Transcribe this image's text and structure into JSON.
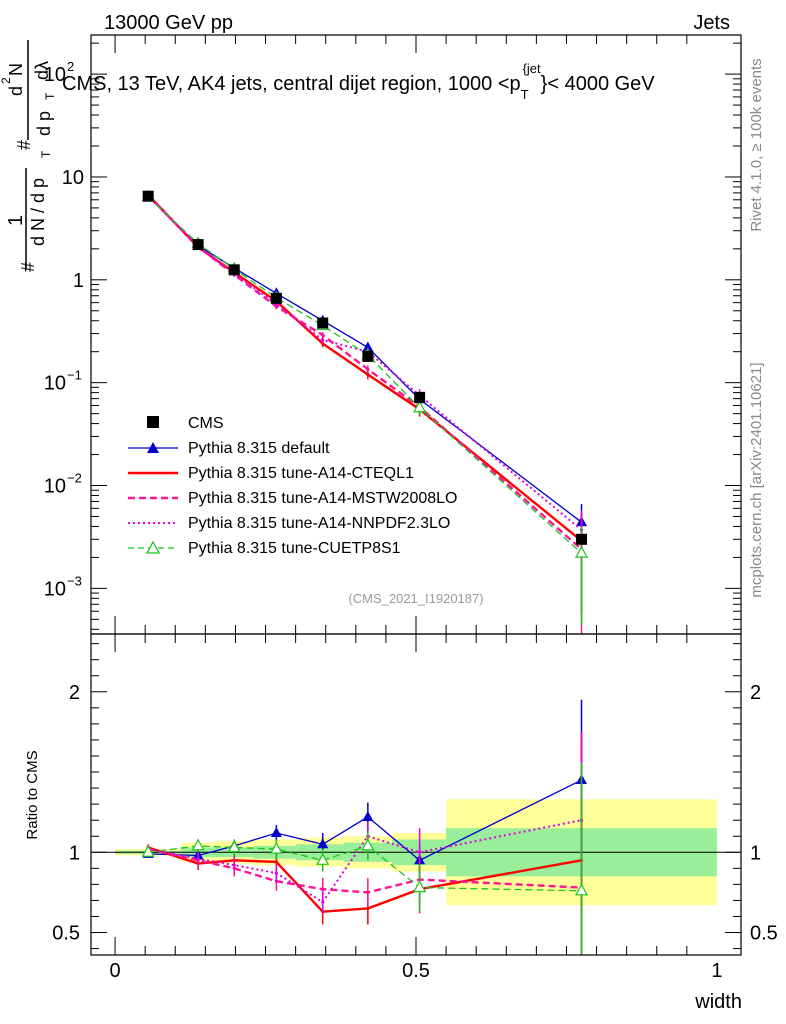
{
  "header": {
    "energy_label": "13000 GeV pp",
    "process_label": "Jets",
    "rivet_label": "Rivet 4.1.0, ≥ 100k events",
    "mcplots_label": "mcplots.cern.ch [arXiv:2401.10621]"
  },
  "chart_data": {
    "type": "line",
    "title": "CMS, 13 TeV, AK4 jets, central dijet region, 1000 < p_T^{jet} < 4000 GeV",
    "title_parts": {
      "main": "CMS, 13 TeV, AK4 jets, central dijet region, 1000 <p",
      "sub": "T",
      "sup": "{jet",
      "close": "}",
      "tail": "< 4000 GeV"
    },
    "analysis_id": "(CMS_2021_I1920187)",
    "xlabel": "width",
    "ylabel_parts": {
      "hash1": "#",
      "one": "1",
      "dn": "d N / d p",
      "t1": "T",
      "hash2": "#",
      "dnum": "d",
      "two": "2",
      "n": "N",
      "dden": "d p",
      "t2": "T",
      "dl": "dλ"
    },
    "ratio_ylabel": "Ratio to CMS",
    "x_range": [
      -0.04,
      1.04
    ],
    "x_ticks": [
      "0",
      "0.5",
      "1"
    ],
    "x_tick_values": [
      0,
      0.5,
      1
    ],
    "main_y_scale": "log",
    "main_y_range": [
      0.00036,
      240
    ],
    "main_y_ticks": [
      {
        "value": 0.001,
        "base": "10",
        "exp": "−3"
      },
      {
        "value": 0.01,
        "base": "10",
        "exp": "−2"
      },
      {
        "value": 0.1,
        "base": "10",
        "exp": "−1"
      },
      {
        "value": 1,
        "text": "1"
      },
      {
        "value": 10,
        "text": "10"
      },
      {
        "value": 100,
        "base": "10",
        "exp": "2"
      }
    ],
    "ratio_y_range": [
      0.36,
      2.36
    ],
    "ratio_y_ticks": [
      "0.5",
      "1",
      "2"
    ],
    "ratio_y_tick_values": [
      0.5,
      1,
      2
    ],
    "bin_edges": [
      0,
      0.11,
      0.165,
      0.23,
      0.3,
      0.38,
      0.46,
      0.55,
      1.0
    ],
    "x_centers": [
      0.055,
      0.138,
      0.198,
      0.268,
      0.345,
      0.42,
      0.506,
      0.775
    ],
    "cms": {
      "name": "CMS",
      "values": [
        6.5,
        2.2,
        1.25,
        0.66,
        0.38,
        0.18,
        0.072,
        0.003
      ],
      "stat_band": [
        0.01,
        0.03,
        0.03,
        0.04,
        0.05,
        0.06,
        0.08,
        0.15
      ],
      "total_band": [
        0.02,
        0.06,
        0.07,
        0.08,
        0.09,
        0.1,
        0.12,
        0.33
      ]
    },
    "series": [
      {
        "name": "Pythia 8.315 default",
        "color": "#0000cc",
        "style": "solid",
        "marker": "triangle-filled",
        "values": [
          6.45,
          2.15,
          1.3,
          0.74,
          0.4,
          0.22,
          0.069,
          0.0044
        ],
        "ratio": [
          0.99,
          0.98,
          1.04,
          1.12,
          1.05,
          1.22,
          0.95,
          1.45
        ],
        "ratio_err": [
          0.02,
          0.03,
          0.04,
          0.05,
          0.07,
          0.09,
          0.09,
          0.5
        ]
      },
      {
        "name": "Pythia 8.315 tune-A14-CTEQL1",
        "color": "#ff0000",
        "style": "solid",
        "marker": "none",
        "values": [
          6.7,
          2.07,
          1.18,
          0.62,
          0.24,
          0.12,
          0.055,
          0.0029
        ],
        "ratio": [
          1.03,
          0.93,
          0.95,
          0.94,
          0.63,
          0.65,
          0.77,
          0.95
        ],
        "ratio_err": [
          0.02,
          0.04,
          0.06,
          0.07,
          0.08,
          0.1,
          0.15,
          0.8
        ]
      },
      {
        "name": "Pythia 8.315 tune-A14-MSTW2008LO",
        "color": "#ff1493",
        "style": "dashed",
        "marker": "none",
        "values": [
          6.6,
          2.1,
          1.12,
          0.55,
          0.29,
          0.135,
          0.058,
          0.0024
        ],
        "ratio": [
          1.02,
          0.95,
          0.9,
          0.82,
          0.77,
          0.75,
          0.83,
          0.78
        ],
        "ratio_err": [
          0.02,
          0.04,
          0.05,
          0.06,
          0.07,
          0.09,
          0.15,
          0.9
        ]
      },
      {
        "name": "Pythia 8.315 tune-A14-NNPDF2.3LO",
        "color": "#e000e0",
        "style": "dotted",
        "marker": "none",
        "values": [
          6.55,
          2.1,
          1.15,
          0.58,
          0.26,
          0.2,
          0.075,
          0.0037
        ],
        "ratio": [
          1.02,
          0.96,
          0.92,
          0.87,
          0.69,
          1.1,
          1.0,
          1.2
        ],
        "ratio_err": [
          0.02,
          0.04,
          0.05,
          0.06,
          0.07,
          0.09,
          0.15,
          0.55
        ]
      },
      {
        "name": "Pythia 8.315 tune-CUETP8S1",
        "color": "#1ec41e",
        "style": "dashed",
        "marker": "triangle-open",
        "values": [
          6.4,
          2.25,
          1.27,
          0.67,
          0.36,
          0.185,
          0.057,
          0.0022
        ],
        "ratio": [
          1.0,
          1.04,
          1.03,
          1.02,
          0.95,
          1.04,
          0.78,
          0.76
        ],
        "ratio_err": [
          0.02,
          0.04,
          0.05,
          0.06,
          0.07,
          0.09,
          0.15,
          0.8
        ]
      }
    ],
    "legend_position": "bottom-left"
  }
}
